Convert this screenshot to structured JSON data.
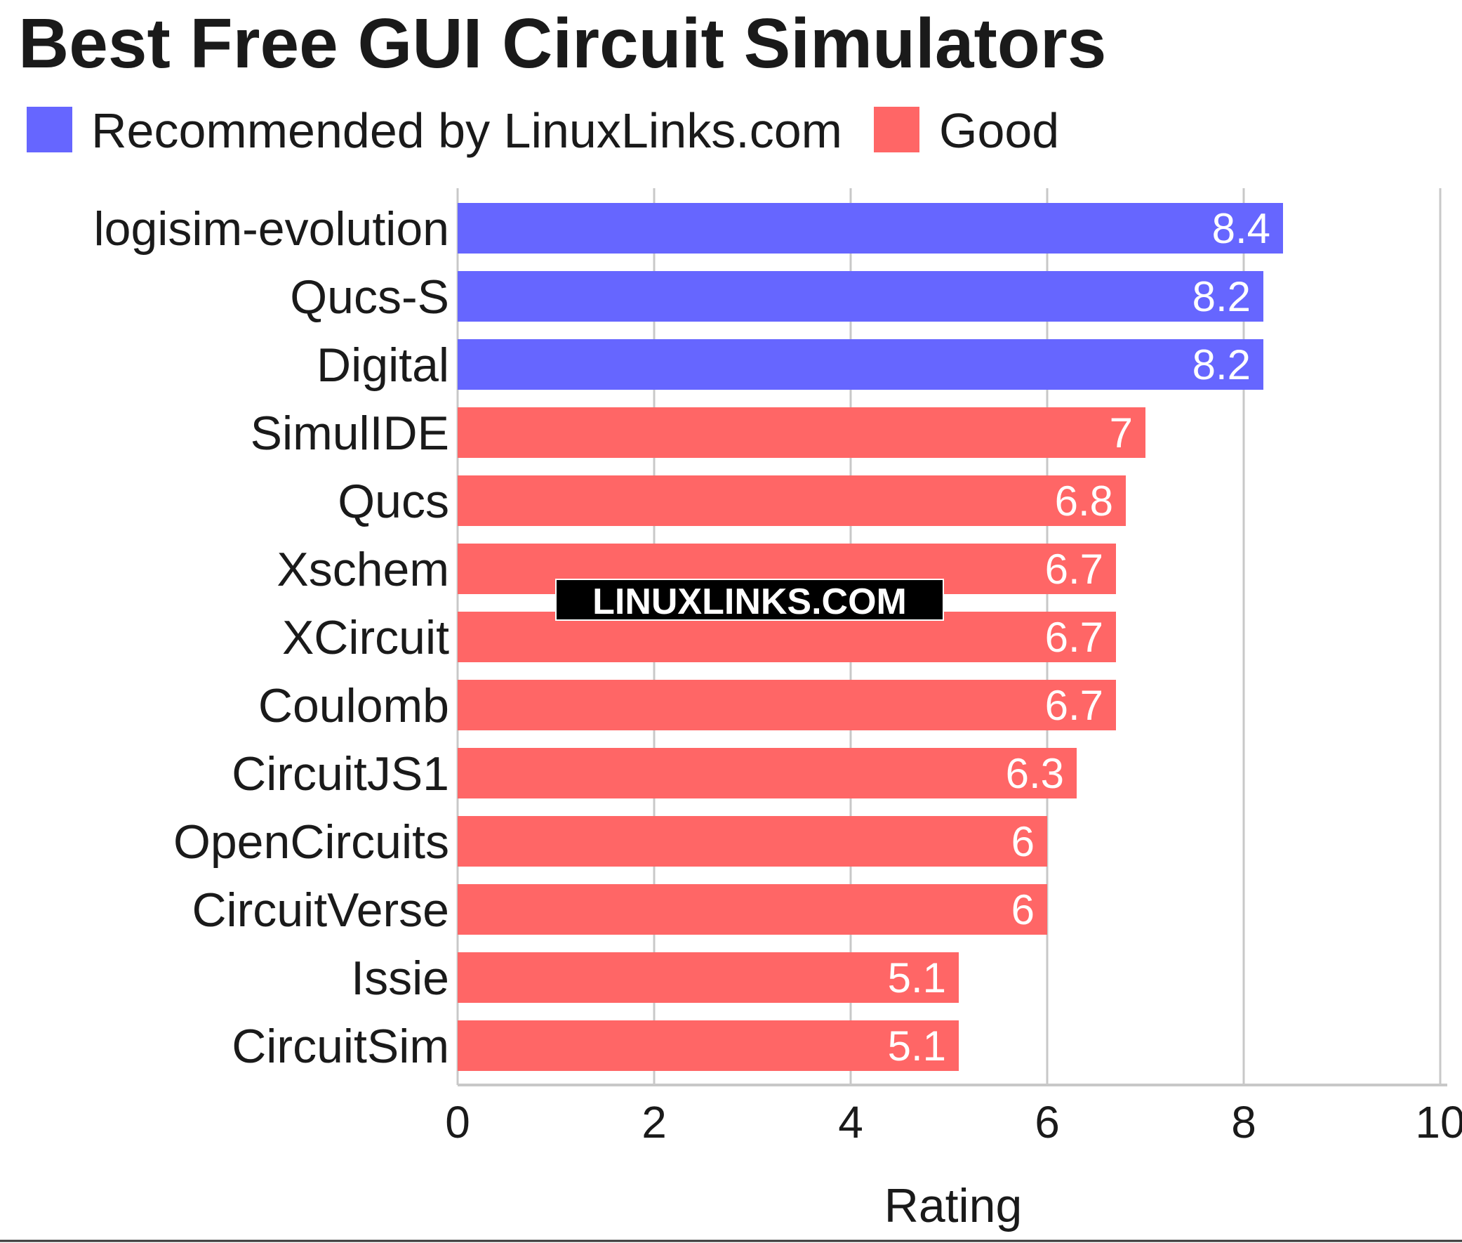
{
  "chart_data": {
    "type": "bar",
    "orientation": "horizontal",
    "title": "Best Free GUI Circuit Simulators",
    "xlabel": "Rating",
    "ylabel": "",
    "xlim": [
      0,
      10
    ],
    "x_ticks": [
      "0",
      "2",
      "4",
      "6",
      "8",
      "10"
    ],
    "grid": "vertical",
    "legend_position": "top-left",
    "legend": [
      {
        "name": "Recommended by LinuxLinks.com",
        "color": "#6666ff"
      },
      {
        "name": "Good",
        "color": "#ff6666"
      }
    ],
    "categories": [
      "logisim-evolution",
      "Qucs-S",
      "Digital",
      "SimulIDE",
      "Qucs",
      "Xschem",
      "XCircuit",
      "Coulomb",
      "CircuitJS1",
      "OpenCircuits",
      "CircuitVerse",
      "Issie",
      "CircuitSim"
    ],
    "values": [
      8.4,
      8.2,
      8.2,
      7,
      6.8,
      6.7,
      6.7,
      6.7,
      6.3,
      6,
      6,
      5.1,
      5.1
    ],
    "value_labels": [
      "8.4",
      "8.2",
      "8.2",
      "7",
      "6.8",
      "6.7",
      "6.7",
      "6.7",
      "6.3",
      "6",
      "6",
      "5.1",
      "5.1"
    ],
    "groups": [
      "Recommended by LinuxLinks.com",
      "Recommended by LinuxLinks.com",
      "Recommended by LinuxLinks.com",
      "Good",
      "Good",
      "Good",
      "Good",
      "Good",
      "Good",
      "Good",
      "Good",
      "Good",
      "Good"
    ],
    "watermark": "LINUXLINKS.COM"
  }
}
